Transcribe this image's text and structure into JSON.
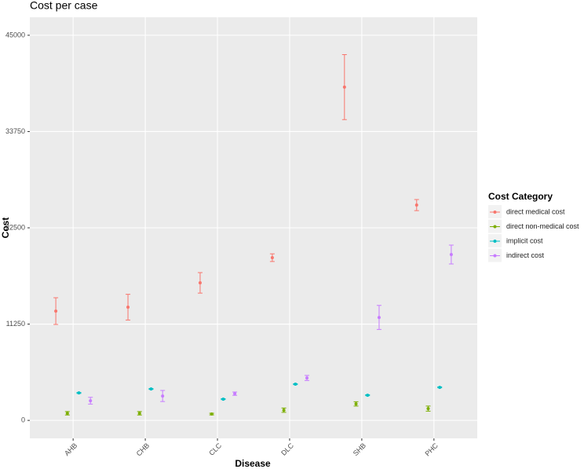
{
  "chart_data": {
    "type": "errorbar",
    "title": "Cost per case",
    "x_label": "Disease",
    "y_label": "Cost",
    "categories": [
      "AHB",
      "CHB",
      "CLC",
      "DLC",
      "SHB",
      "PHC"
    ],
    "ylim": [
      -2100,
      47100
    ],
    "yticks": [
      0,
      11250,
      22500,
      33750,
      45000
    ],
    "grid": true,
    "legend_title": "Cost Category",
    "legend_position": "right",
    "series": [
      {
        "name": "direct medical cost",
        "color": "#F8766D",
        "values": [
          12770,
          13230,
          16070,
          19010,
          38940,
          25160
        ],
        "errors": [
          1560,
          1500,
          1200,
          450,
          3800,
          650
        ]
      },
      {
        "name": "direct non-medical cost",
        "color": "#7CAE00",
        "values": [
          830,
          830,
          740,
          1190,
          1930,
          1380
        ],
        "errors": [
          200,
          200,
          100,
          250,
          250,
          300
        ]
      },
      {
        "name": "implicit cost",
        "color": "#00BFC4",
        "values": [
          3210,
          3670,
          2480,
          4230,
          2940,
          3860
        ],
        "errors": [
          50,
          50,
          50,
          50,
          50,
          50
        ]
      },
      {
        "name": "indirect cost",
        "color": "#C77CFF",
        "values": [
          2300,
          2850,
          3120,
          4960,
          12030,
          19380
        ],
        "errors": [
          400,
          650,
          200,
          300,
          1400,
          1100
        ]
      }
    ]
  }
}
